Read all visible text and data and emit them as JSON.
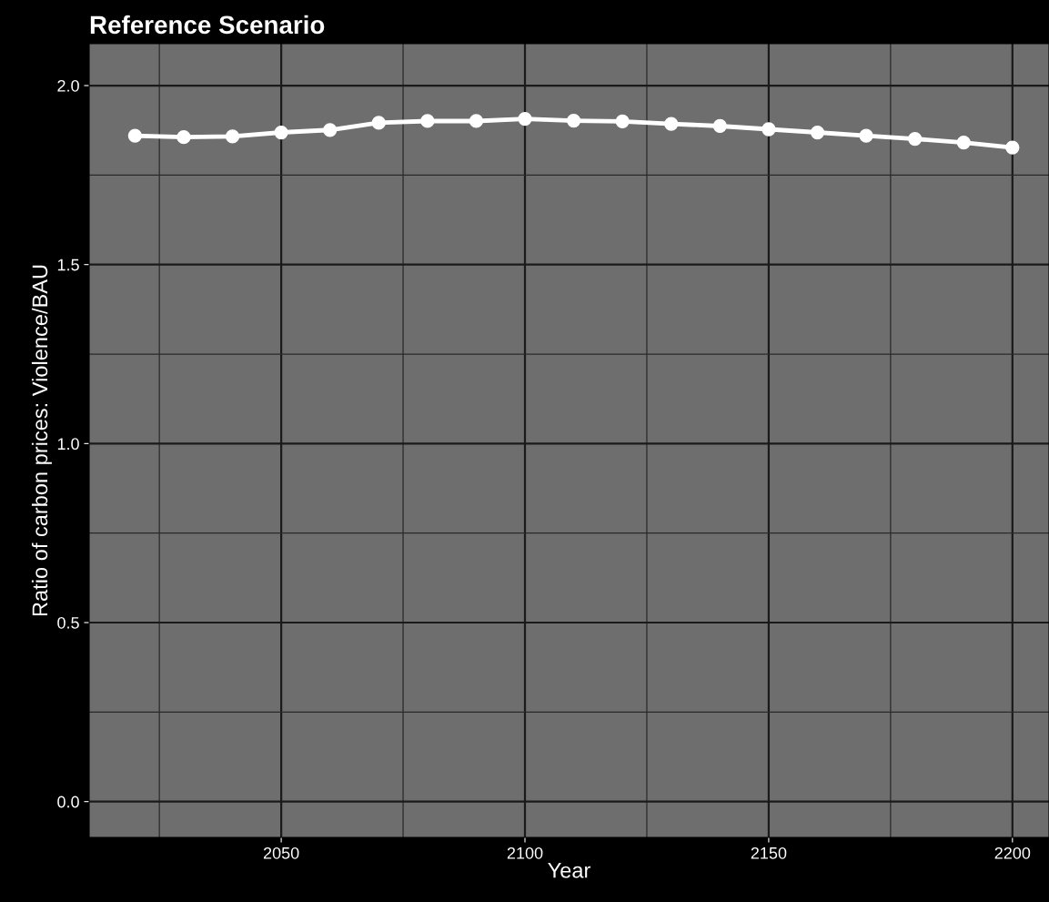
{
  "chart_data": {
    "type": "line",
    "title": "Reference Scenario",
    "xlabel": "Year",
    "ylabel": "Ratio of carbon prices: Violence/BAU",
    "x": [
      2020,
      2030,
      2040,
      2050,
      2060,
      2070,
      2080,
      2090,
      2100,
      2110,
      2120,
      2130,
      2140,
      2150,
      2160,
      2170,
      2180,
      2190,
      2200
    ],
    "series": [
      {
        "color": "#ffffff",
        "values": [
          1.86,
          1.856,
          1.858,
          1.869,
          1.876,
          1.896,
          1.901,
          1.901,
          1.907,
          1.902,
          1.9,
          1.893,
          1.887,
          1.878,
          1.869,
          1.86,
          1.851,
          1.841,
          1.827
        ]
      }
    ],
    "xlim": [
      2010.6,
      2207.5
    ],
    "xticks": [
      2050,
      2100,
      2150,
      2200
    ],
    "ylim": [
      -0.1,
      2.117
    ],
    "yticks": [
      {
        "value": 0,
        "label": "0.0"
      },
      {
        "value": 0.5,
        "label": "0.5"
      },
      {
        "value": 1,
        "label": "1.0"
      },
      {
        "value": 1.5,
        "label": "1.5"
      },
      {
        "value": 2,
        "label": "2.0"
      }
    ],
    "grid": true,
    "marker": "circle",
    "line_style": "solid"
  }
}
